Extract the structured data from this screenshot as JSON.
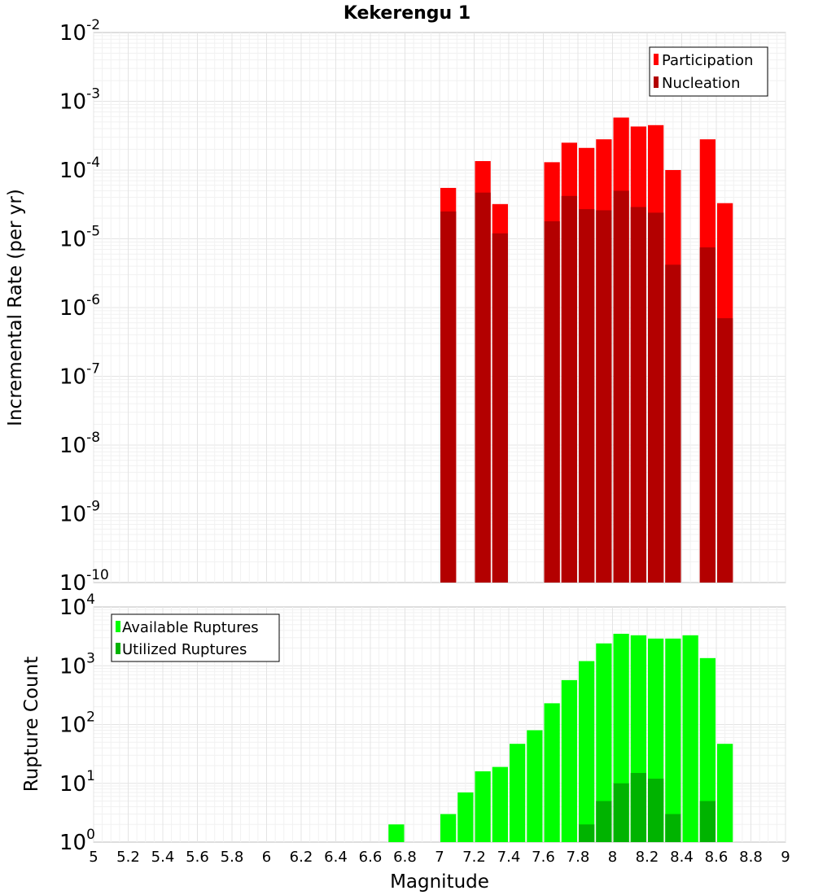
{
  "colors": {
    "participation": "#ff0000",
    "nucleation": "#b30000",
    "available": "#00ff00",
    "utilized": "#00b300"
  },
  "chart_data": [
    {
      "type": "bar",
      "title": "Kekerengu 1",
      "xlabel": "",
      "ylabel": "Incremental Rate (per yr)",
      "yscale": "log",
      "ylim_exp": [
        -10,
        -2
      ],
      "xlim": [
        5,
        9
      ],
      "bar_width": 0.1,
      "legend_position": "top-right",
      "series": [
        {
          "name": "Participation",
          "x": [
            7.05,
            7.25,
            7.35,
            7.65,
            7.75,
            7.85,
            7.95,
            8.05,
            8.15,
            8.25,
            8.35,
            8.55,
            8.65
          ],
          "values": [
            5.5e-05,
            0.000135,
            3.2e-05,
            0.00013,
            0.00025,
            0.00021,
            0.00028,
            0.00058,
            0.00043,
            0.00045,
            0.0001,
            0.00028,
            3.3e-05
          ]
        },
        {
          "name": "Nucleation",
          "x": [
            7.05,
            7.25,
            7.35,
            7.65,
            7.75,
            7.85,
            7.95,
            8.05,
            8.15,
            8.25,
            8.35,
            8.55,
            8.65
          ],
          "values": [
            2.5e-05,
            4.7e-05,
            1.2e-05,
            1.8e-05,
            4.2e-05,
            2.7e-05,
            2.6e-05,
            5e-05,
            2.9e-05,
            2.4e-05,
            4.2e-06,
            7.5e-06,
            7e-07
          ]
        }
      ]
    },
    {
      "type": "bar",
      "title": "",
      "xlabel": "Magnitude",
      "ylabel": "Rupture Count",
      "yscale": "log",
      "ylim_exp": [
        0,
        4
      ],
      "xlim": [
        5,
        9
      ],
      "bar_width": 0.1,
      "legend_position": "top-left",
      "series": [
        {
          "name": "Available Ruptures",
          "x": [
            6.75,
            6.95,
            7.05,
            7.15,
            7.25,
            7.35,
            7.45,
            7.55,
            7.65,
            7.75,
            7.85,
            7.95,
            8.05,
            8.15,
            8.25,
            8.35,
            8.45,
            8.55,
            8.65
          ],
          "values": [
            2,
            1,
            3,
            7,
            16,
            19,
            47,
            80,
            230,
            570,
            1200,
            2400,
            3500,
            3300,
            2900,
            2900,
            3300,
            1350,
            47
          ]
        },
        {
          "name": "Utilized Ruptures",
          "x": [
            7.05,
            7.25,
            7.35,
            7.65,
            7.75,
            7.85,
            7.95,
            8.05,
            8.15,
            8.25,
            8.35,
            8.55,
            8.65
          ],
          "values": [
            1,
            1,
            1,
            1,
            1,
            2,
            5,
            10,
            15,
            12,
            3,
            5,
            1
          ]
        }
      ]
    }
  ],
  "x_ticks": [
    "5",
    "5.2",
    "5.4",
    "5.6",
    "5.8",
    "6",
    "6.2",
    "6.4",
    "6.6",
    "6.8",
    "7",
    "7.2",
    "7.4",
    "7.6",
    "7.8",
    "8",
    "8.2",
    "8.4",
    "8.6",
    "8.8",
    "9"
  ]
}
